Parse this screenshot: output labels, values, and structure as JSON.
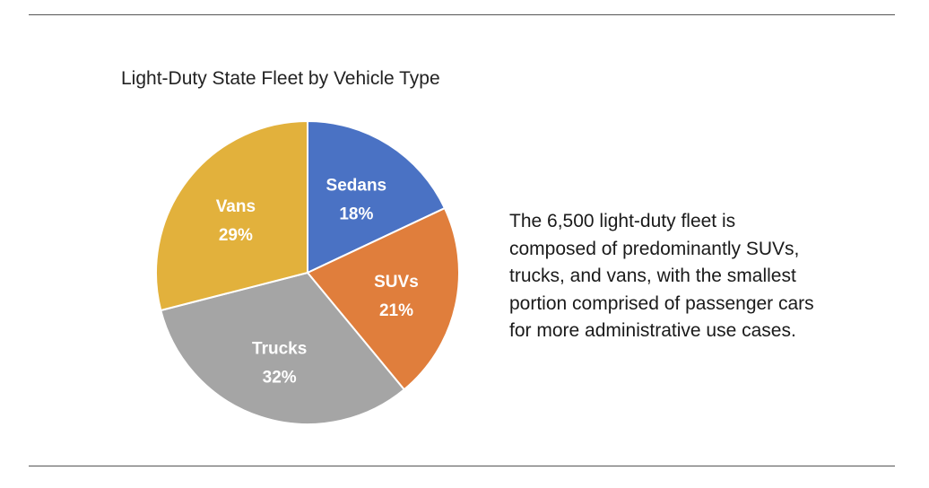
{
  "chart_data": {
    "type": "pie",
    "title": "Light-Duty State Fleet by Vehicle Type",
    "categories": [
      "Sedans",
      "SUVs",
      "Trucks",
      "Vans"
    ],
    "values": [
      18,
      21,
      32,
      29
    ],
    "value_labels": [
      "18%",
      "21%",
      "32%",
      "29%"
    ],
    "colors": [
      "#4A72C4",
      "#E07E3C",
      "#A5A5A5",
      "#E2B13C"
    ],
    "start": "12 o'clock",
    "direction": "clockwise",
    "legend": "none"
  },
  "annotation": {
    "lines": [
      "The 6,500 light-duty fleet is",
      "composed of predominantly SUVs,",
      "trucks, and vans, with the smallest",
      "portion comprised of passenger cars",
      "for more administrative use cases."
    ]
  }
}
